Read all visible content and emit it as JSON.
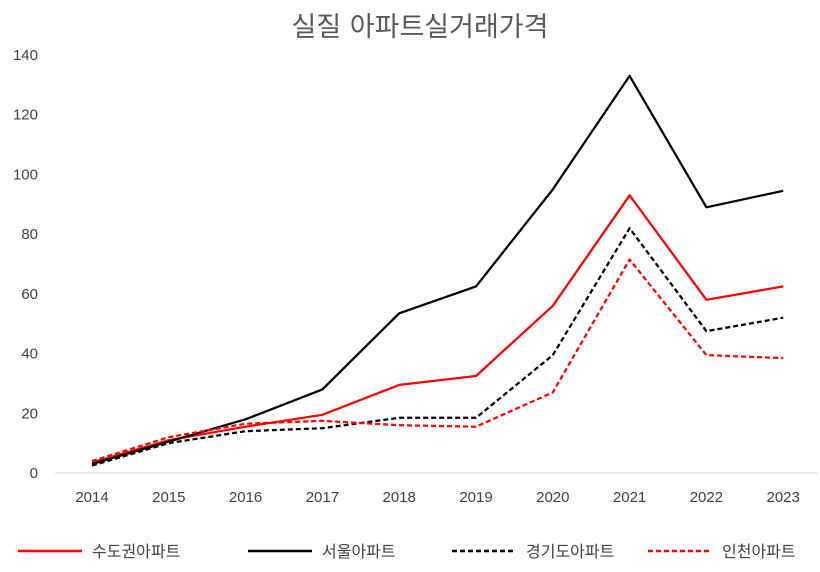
{
  "chart_data": {
    "type": "line",
    "title": "실질 아파트실거래가격",
    "xlabel": "",
    "ylabel": "",
    "categories": [
      "2014",
      "2015",
      "2016",
      "2017",
      "2018",
      "2019",
      "2020",
      "2021",
      "2022",
      "2023"
    ],
    "ylim": [
      0,
      140
    ],
    "yticks": [
      "0",
      "20",
      "40",
      "60",
      "80",
      "100",
      "120",
      "140"
    ],
    "grid": false,
    "legend_position": "bottom",
    "series": [
      {
        "name": "수도권아파트",
        "color": "#ff0000",
        "dash": "solid",
        "values": [
          3.5,
          11,
          15.5,
          19.5,
          29.5,
          32.5,
          56,
          93,
          58,
          62.5
        ]
      },
      {
        "name": "서울아파트",
        "color": "#000000",
        "dash": "solid",
        "values": [
          3,
          10.5,
          18,
          28,
          53.5,
          62.5,
          95,
          133,
          89,
          94.5
        ]
      },
      {
        "name": "경기도아파트",
        "color": "#000000",
        "dash": "dashed",
        "values": [
          2.5,
          10,
          14,
          15,
          18.5,
          18.5,
          39.5,
          82,
          47.5,
          52
        ]
      },
      {
        "name": "인천아파트",
        "color": "#ff0000",
        "dash": "dashed",
        "values": [
          4,
          12,
          16.5,
          17.5,
          16,
          15.5,
          27,
          71.5,
          39.5,
          38.5
        ]
      }
    ]
  }
}
